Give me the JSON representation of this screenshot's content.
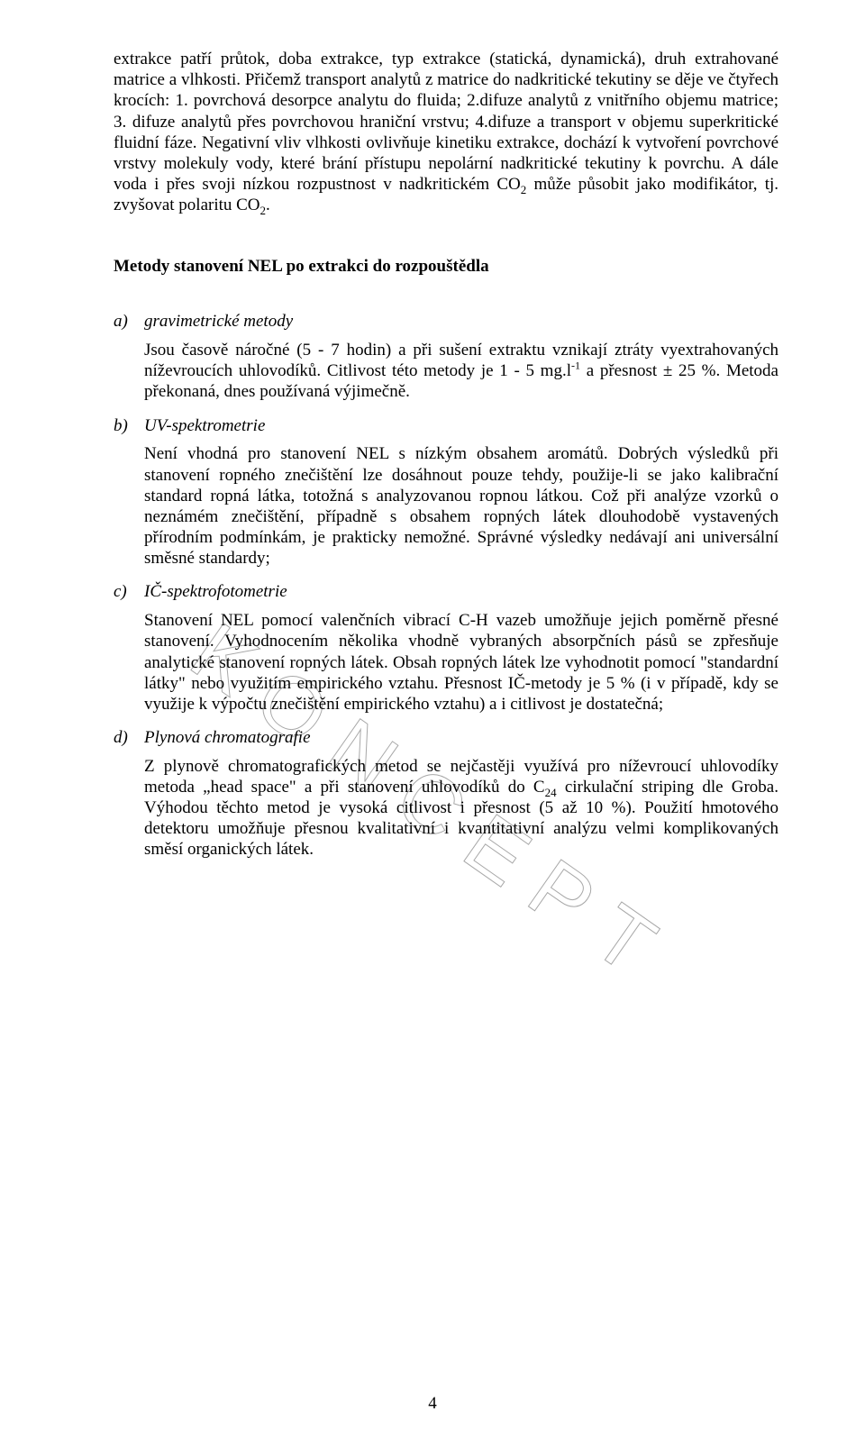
{
  "watermark": "KONCEPT",
  "page_number": "4",
  "intro_paragraph_html": "extrakce patří průtok, doba extrakce, typ extrakce (statická, dynamická), druh extrahované matrice a vlhkosti. Přičemž transport analytů z matrice do nadkritické tekutiny se děje ve čtyřech krocích: 1. povrchová desorpce analytu do fluida; 2.difuze analytů z vnitřního objemu matrice; 3. difuze analytů přes povrchovou hraniční vrstvu; 4.difuze a transport v objemu superkritické fluidní fáze. Negativní vliv vlhkosti ovlivňuje kinetiku extrakce, dochází k vytvoření povrchové vrstvy molekuly vody, které brání přístupu nepolární nadkritické tekutiny k povrchu. A dále voda i přes svoji nízkou rozpustnost v nadkritickém CO<span class=\"sub\">2</span> může působit jako modifikátor, tj. zvyšovat polaritu CO<span class=\"sub\">2</span>.",
  "section_title": "Metody stanovení NEL po extrakci do rozpouštědla",
  "items": [
    {
      "marker": "a)",
      "title": "gravimetrické metody",
      "body_html": "Jsou časově náročné (5 - 7 hodin) a při sušení extraktu vznikají ztráty vyextrahovaných níževroucích uhlovodíků. Citlivost této metody je 1 - 5  mg.l<span class=\"sup\">-1</span> a přesnost ± 25 %. Metoda překonaná, dnes používaná výjimečně."
    },
    {
      "marker": "b)",
      "title": "UV-spektrometrie",
      "body_html": "Není vhodná pro stanovení NEL s nízkým obsahem aromátů. Dobrých výsledků při stanovení ropného znečištění lze dosáhnout pouze tehdy, použije-li se jako kalibrační standard ropná látka, totožná s analyzovanou ropnou látkou. Což při analýze vzorků o neznámém znečištění, případně s obsahem ropných látek dlouhodobě vystavených přírodním podmínkám, je prakticky nemožné. Správné výsledky nedávají ani universální směsné standardy;"
    },
    {
      "marker": "c)",
      "title": "IČ-spektrofotometrie",
      "body_html": "Stanovení NEL pomocí valenčních vibrací C-H vazeb umožňuje jejich poměrně přesné stanovení. Vyhodnocením několika vhodně vybraných absorpčních pásů se zpřesňuje analytické stanovení ropných látek. Obsah ropných látek lze vyhodnotit pomocí \"standardní látky\" nebo využitím empirického vztahu. Přesnost IČ-metody je 5 % (i v případě, kdy se využije k výpočtu znečištění empirického vztahu) a i citlivost je dostatečná;"
    },
    {
      "marker": "d)",
      "title": "Plynová chromatografie",
      "body_html": "Z plynově chromatografických metod se nejčastěji využívá pro níževroucí uhlovodíky metoda „head space\" a při stanovení uhlovodíků do C<span class=\"sub\">24</span> cirkulační striping dle Groba. Výhodou těchto metod je vysoká citlivost i přesnost (5 až 10 %). Použití hmotového detektoru umožňuje přesnou kvalitativní i kvantitativní analýzu velmi komplikovaných směsí organických látek."
    }
  ]
}
